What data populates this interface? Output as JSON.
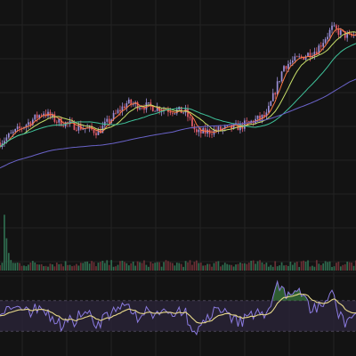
{
  "colors": {
    "background": "#131313",
    "grid": "#232323",
    "candle_up": "#9b8fd6",
    "candle_down": "#e25b6a",
    "ma_fast": "#ff7a45",
    "ma_mid": "#c9e06a",
    "ma_slow": "#3fc29a",
    "ma_long": "#6a63c9",
    "volume_up": "#2f6b4e",
    "volume_down": "#6b2f35",
    "osc_line": "#8b7be0",
    "osc_signal": "#e8d98a",
    "osc_fill_positive": "#3a7d3f",
    "osc_band": "#2a2438"
  },
  "chart_data": [
    {
      "type": "candlestick",
      "panel": "price",
      "grid": true,
      "segments": [
        {
          "from": 0,
          "to": 20,
          "start": 40,
          "end": 57
        },
        {
          "from": 20,
          "to": 26,
          "start": 57,
          "end": 52
        },
        {
          "from": 26,
          "to": 45,
          "start": 52,
          "end": 46
        },
        {
          "from": 45,
          "to": 58,
          "start": 46,
          "end": 62
        },
        {
          "from": 58,
          "to": 85,
          "start": 62,
          "end": 57
        },
        {
          "from": 85,
          "to": 90,
          "start": 57,
          "end": 45
        },
        {
          "from": 90,
          "to": 110,
          "start": 45,
          "end": 49
        },
        {
          "from": 110,
          "to": 122,
          "start": 49,
          "end": 55
        },
        {
          "from": 122,
          "to": 130,
          "start": 55,
          "end": 83
        },
        {
          "from": 130,
          "to": 145,
          "start": 83,
          "end": 92
        },
        {
          "from": 145,
          "to": 152,
          "start": 92,
          "end": 104
        },
        {
          "from": 152,
          "to": 160,
          "start": 104,
          "end": 99
        },
        {
          "from": 160,
          "to": 165,
          "start": 99,
          "end": 102
        }
      ],
      "moving_averages": [
        {
          "period": 5,
          "color_key": "ma_fast"
        },
        {
          "period": 12,
          "color_key": "ma_mid"
        },
        {
          "period": 30,
          "color_key": "ma_slow"
        },
        {
          "period": 80,
          "color_key": "ma_long"
        }
      ]
    },
    {
      "type": "bar",
      "panel": "volume",
      "spikes": [
        {
          "at": 2,
          "value": 95
        },
        {
          "at": 3,
          "value": 55
        },
        {
          "at": 4,
          "value": 30
        },
        {
          "at": 5,
          "value": 18
        }
      ],
      "base_level": 12
    },
    {
      "type": "line",
      "panel": "oscillator",
      "ylim": [
        0,
        100
      ],
      "bands": [
        30,
        70
      ]
    }
  ]
}
